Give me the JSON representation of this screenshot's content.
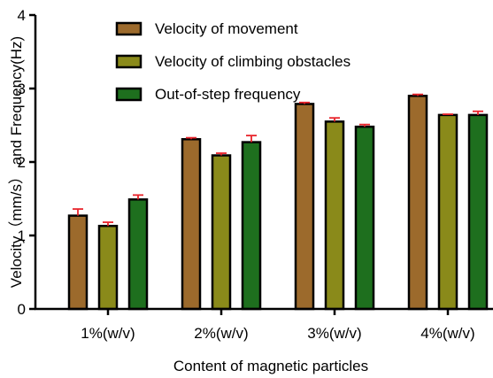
{
  "chart_data": {
    "type": "bar",
    "xlabel": "Content of magnetic particles",
    "ylabel": "Velocity（mm/s） and Frequency(Hz)",
    "ylim": [
      0,
      4
    ],
    "yticks": [
      0,
      1,
      2,
      3,
      4
    ],
    "grid": false,
    "legend_position": "top-center",
    "categories": [
      "1%(w/v)",
      "2%(w/v)",
      "3%(w/v)",
      "4%(w/v)"
    ],
    "series": [
      {
        "name": "Velocity of movement",
        "color": "#9c6a2c",
        "values": [
          1.27,
          2.31,
          2.79,
          2.9
        ],
        "errors": [
          0.09,
          0.02,
          0.02,
          0.02
        ]
      },
      {
        "name": "Velocity of climbing obstacles",
        "color": "#8a8a1a",
        "values": [
          1.13,
          2.09,
          2.55,
          2.64
        ],
        "errors": [
          0.05,
          0.03,
          0.05,
          0.01
        ]
      },
      {
        "name": "Out-of-step frequency",
        "color": "#1e6f1e",
        "values": [
          1.49,
          2.27,
          2.48,
          2.64
        ],
        "errors": [
          0.06,
          0.09,
          0.03,
          0.05
        ]
      }
    ],
    "error_bar_color": "#e8242b"
  }
}
